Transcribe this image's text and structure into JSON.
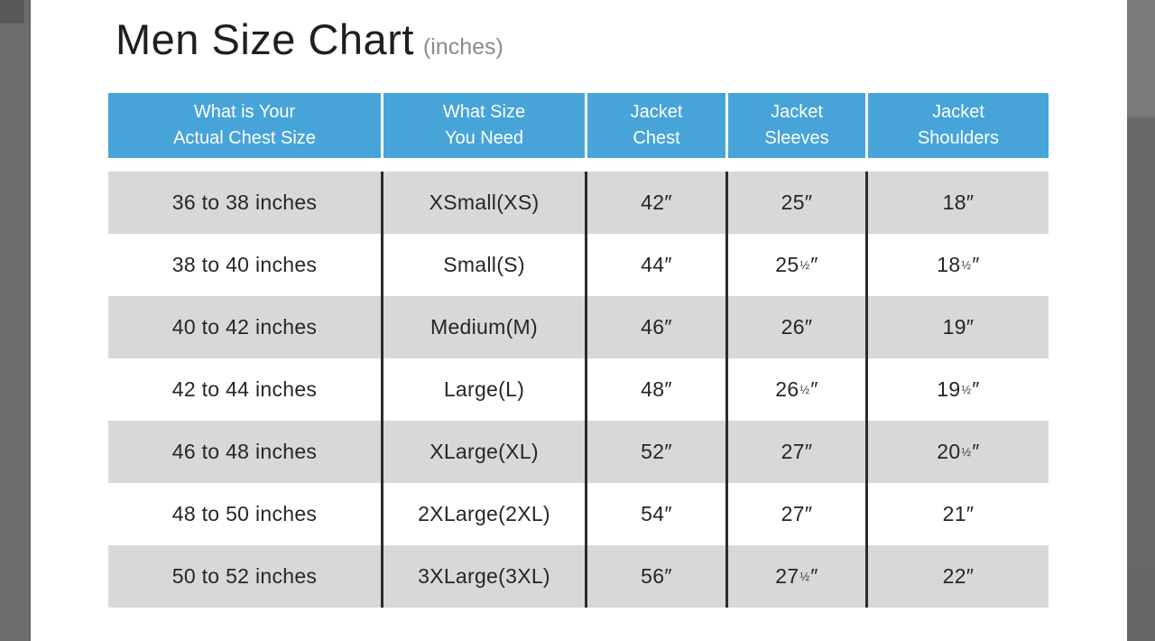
{
  "colors": {
    "header_bg": "#47a4d9",
    "header_text": "#ffffff",
    "row_alt_bg": "#d8d8d8",
    "row_text": "#262626",
    "divider_line": "#2c2c2c",
    "title_text": "#1f1f1f",
    "title_suffix_text": "#8b8b8b",
    "edge_strip": "#6d6d6d"
  },
  "title": {
    "main": "Men Size Chart",
    "suffix": "(inches)"
  },
  "chart_data": {
    "type": "table",
    "title": "Men Size Chart",
    "title_suffix": "(inches)",
    "unit": "inches",
    "columns": [
      [
        "What is Your",
        "Actual Chest Size"
      ],
      [
        "What Size",
        "You Need"
      ],
      [
        "Jacket",
        "Chest"
      ],
      [
        "Jacket",
        "Sleeves"
      ],
      [
        "Jacket",
        "Shoulders"
      ]
    ],
    "rows": [
      [
        "36 to 38 inches",
        "XSmall(XS)",
        "42″",
        "25″",
        "18″"
      ],
      [
        "38 to 40 inches",
        "Small(S)",
        "44″",
        "25½″",
        "18½″"
      ],
      [
        "40 to 42 inches",
        "Medium(M)",
        "46″",
        "26″",
        "19″"
      ],
      [
        "42 to 44 inches",
        "Large(L)",
        "48″",
        "26½″",
        "19½″"
      ],
      [
        "46 to 48 inches",
        "XLarge(XL)",
        "52″",
        "27″",
        "20½″"
      ],
      [
        "48 to 50 inches",
        "2XLarge(2XL)",
        "54″",
        "27″",
        "21″"
      ],
      [
        "50 to 52 inches",
        "3XLarge(3XL)",
        "56″",
        "27½″",
        "22″"
      ]
    ]
  }
}
